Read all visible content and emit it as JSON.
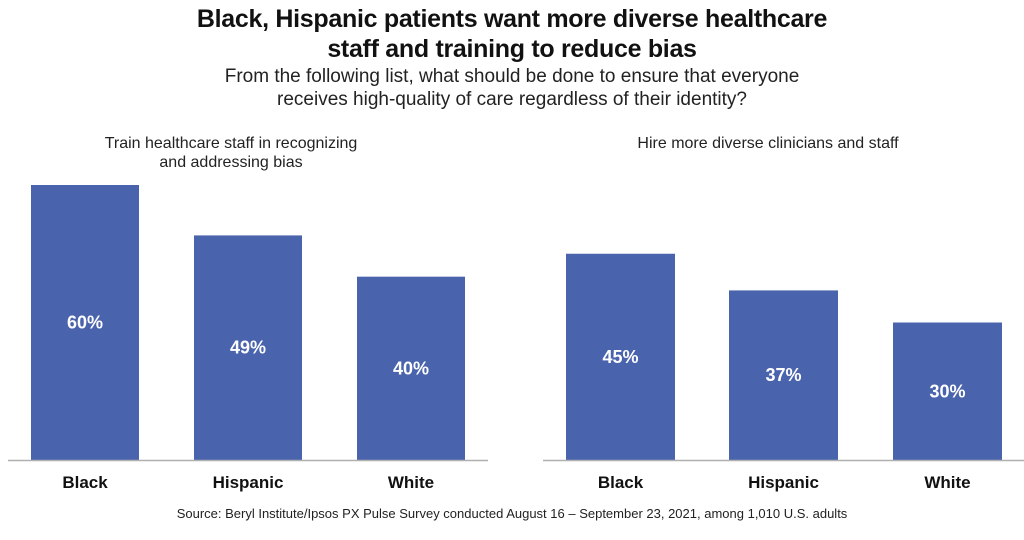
{
  "chart_data": [
    {
      "type": "bar",
      "title": "Train healthcare staff in recognizing and addressing bias",
      "title_lines": [
        "Train healthcare staff in recognizing",
        "and addressing bias"
      ],
      "categories": [
        "Black",
        "Hispanic",
        "White"
      ],
      "values": [
        60,
        49,
        40
      ],
      "value_labels": [
        "60%",
        "49%",
        "40%"
      ],
      "xlabel": "",
      "ylabel": "",
      "ylim": [
        0,
        60
      ],
      "grid": false,
      "bar_color": "#4a63ad"
    },
    {
      "type": "bar",
      "title": "Hire more diverse clinicians and staff",
      "title_lines": [
        "Hire more diverse clinicians and staff"
      ],
      "categories": [
        "Black",
        "Hispanic",
        "White"
      ],
      "values": [
        45,
        37,
        30
      ],
      "value_labels": [
        "45%",
        "37%",
        "30%"
      ],
      "xlabel": "",
      "ylabel": "",
      "ylim": [
        0,
        60
      ],
      "grid": false,
      "bar_color": "#4a63ad"
    }
  ],
  "header": {
    "title_lines": [
      "Black, Hispanic patients want more diverse healthcare",
      "staff and training to reduce bias"
    ],
    "subtitle_lines": [
      "From the following list, what should be done to ensure that everyone",
      "receives high-quality of care regardless of their identity?"
    ]
  },
  "footer": {
    "source": "Source: Beryl Institute/Ipsos PX Pulse Survey conducted August 16 – September 23, 2021, among 1,010 U.S. adults"
  },
  "colors": {
    "bar": "#4a63ad",
    "axis": "#b0b0b0",
    "text": "#111111"
  }
}
